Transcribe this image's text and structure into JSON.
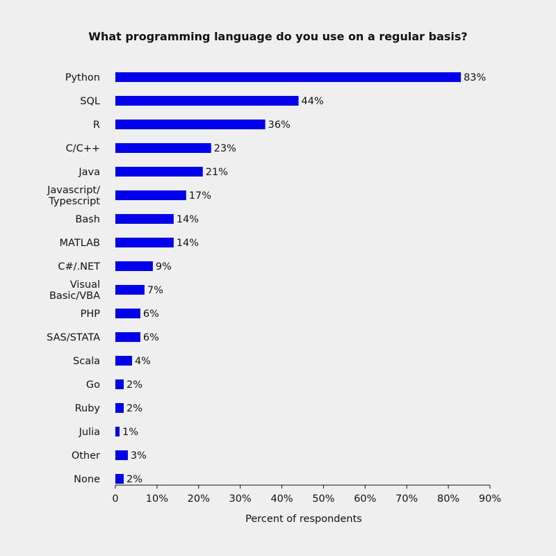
{
  "chart_data": {
    "type": "bar",
    "orientation": "horizontal",
    "title": "What programming language do you use on a regular basis?",
    "xlabel": "Percent of respondents",
    "ylabel": "",
    "xlim": [
      0,
      90
    ],
    "x_ticks": [
      0,
      10,
      20,
      30,
      40,
      50,
      60,
      70,
      80,
      90
    ],
    "x_tick_labels": [
      "0",
      "10%",
      "20%",
      "30%",
      "40%",
      "50%",
      "60%",
      "70%",
      "80%",
      "90%"
    ],
    "grid": false,
    "bar_color": "#0000ee",
    "categories": [
      [
        "Python"
      ],
      [
        "SQL"
      ],
      [
        "R"
      ],
      [
        "C/C++"
      ],
      [
        "Java"
      ],
      [
        "Javascript/",
        "Typescript"
      ],
      [
        "Bash"
      ],
      [
        "MATLAB"
      ],
      [
        "C#/.NET"
      ],
      [
        "Visual",
        "Basic/VBA"
      ],
      [
        "PHP"
      ],
      [
        "SAS/STATA"
      ],
      [
        "Scala"
      ],
      [
        "Go"
      ],
      [
        "Ruby"
      ],
      [
        "Julia"
      ],
      [
        "Other"
      ],
      [
        "None"
      ]
    ],
    "values": [
      83,
      44,
      36,
      23,
      21,
      17,
      14,
      14,
      9,
      7,
      6,
      6,
      4,
      2,
      2,
      1,
      3,
      2
    ],
    "value_labels": [
      "83%",
      "44%",
      "36%",
      "23%",
      "21%",
      "17%",
      "14%",
      "14%",
      "9%",
      "7%",
      "6%",
      "6%",
      "4%",
      "2%",
      "2%",
      "1%",
      "3%",
      "2%"
    ]
  }
}
